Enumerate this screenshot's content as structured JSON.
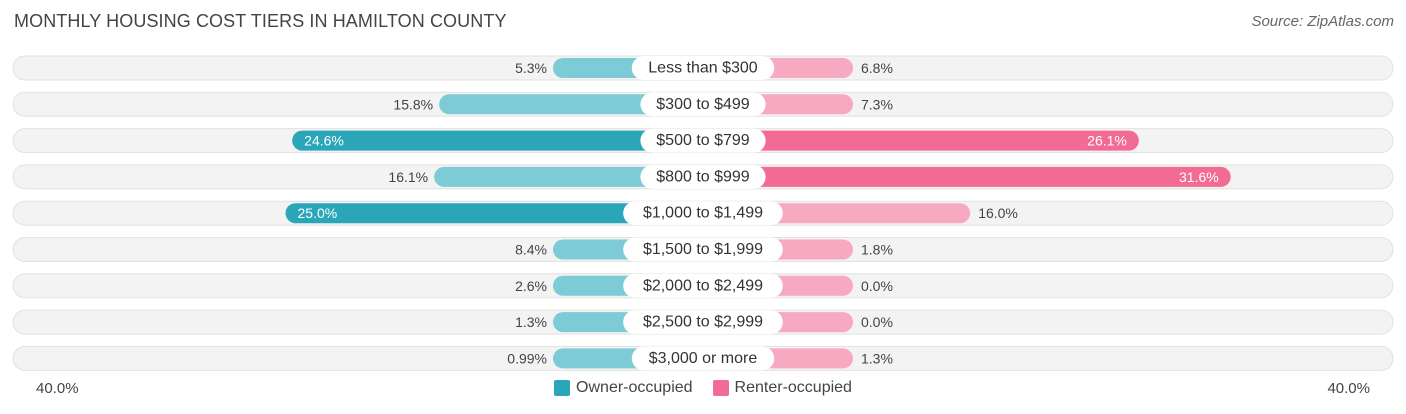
{
  "header": {
    "title": "MONTHLY HOUSING COST TIERS IN HAMILTON COUNTY",
    "source": "Source: ZipAtlas.com"
  },
  "colors": {
    "owner_dark": "#2aa6b8",
    "owner_light": "#7ccbd6",
    "renter_dark": "#f26b94",
    "renter_light": "#f7a9c2",
    "track": "#ececec"
  },
  "chart_data": {
    "type": "bar",
    "orientation": "diverging-horizontal",
    "title": "MONTHLY HOUSING COST TIERS IN HAMILTON COUNTY",
    "categories": [
      "Less than $300",
      "$300 to $499",
      "$500 to $799",
      "$800 to $999",
      "$1,000 to $1,499",
      "$1,500 to $1,999",
      "$2,000 to $2,499",
      "$2,500 to $2,999",
      "$3,000 or more"
    ],
    "series": [
      {
        "name": "Owner-occupied",
        "values": [
          5.3,
          15.8,
          24.6,
          16.1,
          25.0,
          8.4,
          2.6,
          1.3,
          0.99
        ],
        "labels": [
          "5.3%",
          "15.8%",
          "24.6%",
          "16.1%",
          "25.0%",
          "8.4%",
          "2.6%",
          "1.3%",
          "0.99%"
        ]
      },
      {
        "name": "Renter-occupied",
        "values": [
          6.8,
          7.3,
          26.1,
          31.6,
          16.0,
          1.8,
          0.0,
          0.0,
          1.3
        ],
        "labels": [
          "6.8%",
          "7.3%",
          "26.1%",
          "31.6%",
          "16.0%",
          "1.8%",
          "0.0%",
          "0.0%",
          "1.3%"
        ]
      }
    ],
    "xlim": [
      -40,
      40
    ],
    "axis_labels": {
      "left": "40.0%",
      "right": "40.0%"
    },
    "legend": [
      "Owner-occupied",
      "Renter-occupied"
    ]
  }
}
